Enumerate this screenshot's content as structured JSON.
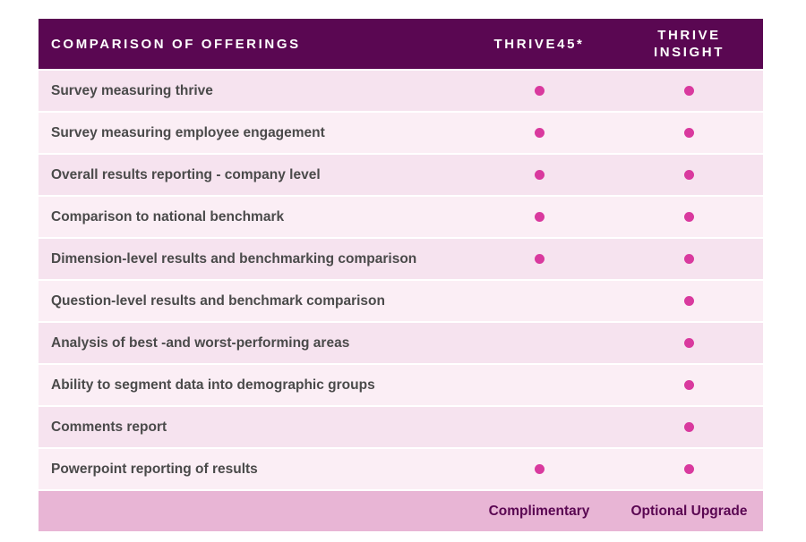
{
  "header": {
    "title": "COMPARISON OF OFFERINGS",
    "col1": "THRIVE45*",
    "col2": "THRIVE\nINSIGHT"
  },
  "rows": [
    {
      "label": "Survey measuring thrive",
      "thrive45": true,
      "insight": true
    },
    {
      "label": "Survey measuring employee engagement",
      "thrive45": true,
      "insight": true
    },
    {
      "label": "Overall results reporting - company level",
      "thrive45": true,
      "insight": true
    },
    {
      "label": "Comparison to national benchmark",
      "thrive45": true,
      "insight": true
    },
    {
      "label": "Dimension-level results and benchmarking comparison",
      "thrive45": true,
      "insight": true
    },
    {
      "label": "Question-level results and benchmark comparison",
      "thrive45": false,
      "insight": true
    },
    {
      "label": "Analysis of best -and worst-performing areas",
      "thrive45": false,
      "insight": true
    },
    {
      "label": "Ability to segment data into demographic groups",
      "thrive45": false,
      "insight": true
    },
    {
      "label": "Comments report",
      "thrive45": false,
      "insight": true
    },
    {
      "label": "Powerpoint reporting of results",
      "thrive45": true,
      "insight": true
    }
  ],
  "footer": {
    "col1": "Complimentary",
    "col2": "Optional Upgrade"
  },
  "colors": {
    "header_bg": "#5a0752",
    "dot": "#d9399e",
    "footer_bg": "#e8b5d5"
  }
}
